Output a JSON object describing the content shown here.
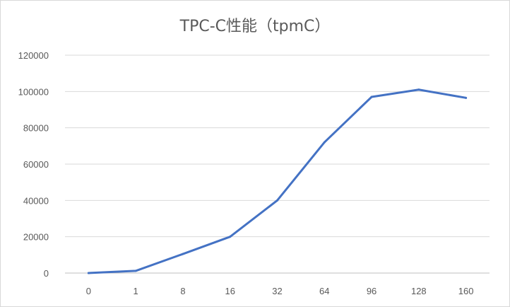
{
  "chart_data": {
    "type": "line",
    "title": "TPC-C性能（tpmC）",
    "xlabel": "",
    "ylabel": "",
    "categories": [
      "0",
      "1",
      "8",
      "16",
      "32",
      "64",
      "96",
      "128",
      "160"
    ],
    "series": [
      {
        "values": [
          0,
          1200,
          10500,
          20000,
          40000,
          72000,
          97000,
          101000,
          96500
        ],
        "color": "#4472C4"
      }
    ],
    "ylim": [
      0,
      120000
    ],
    "yticks": [
      "0",
      "20000",
      "40000",
      "60000",
      "80000",
      "100000",
      "120000"
    ],
    "grid": true,
    "legend": "none"
  }
}
